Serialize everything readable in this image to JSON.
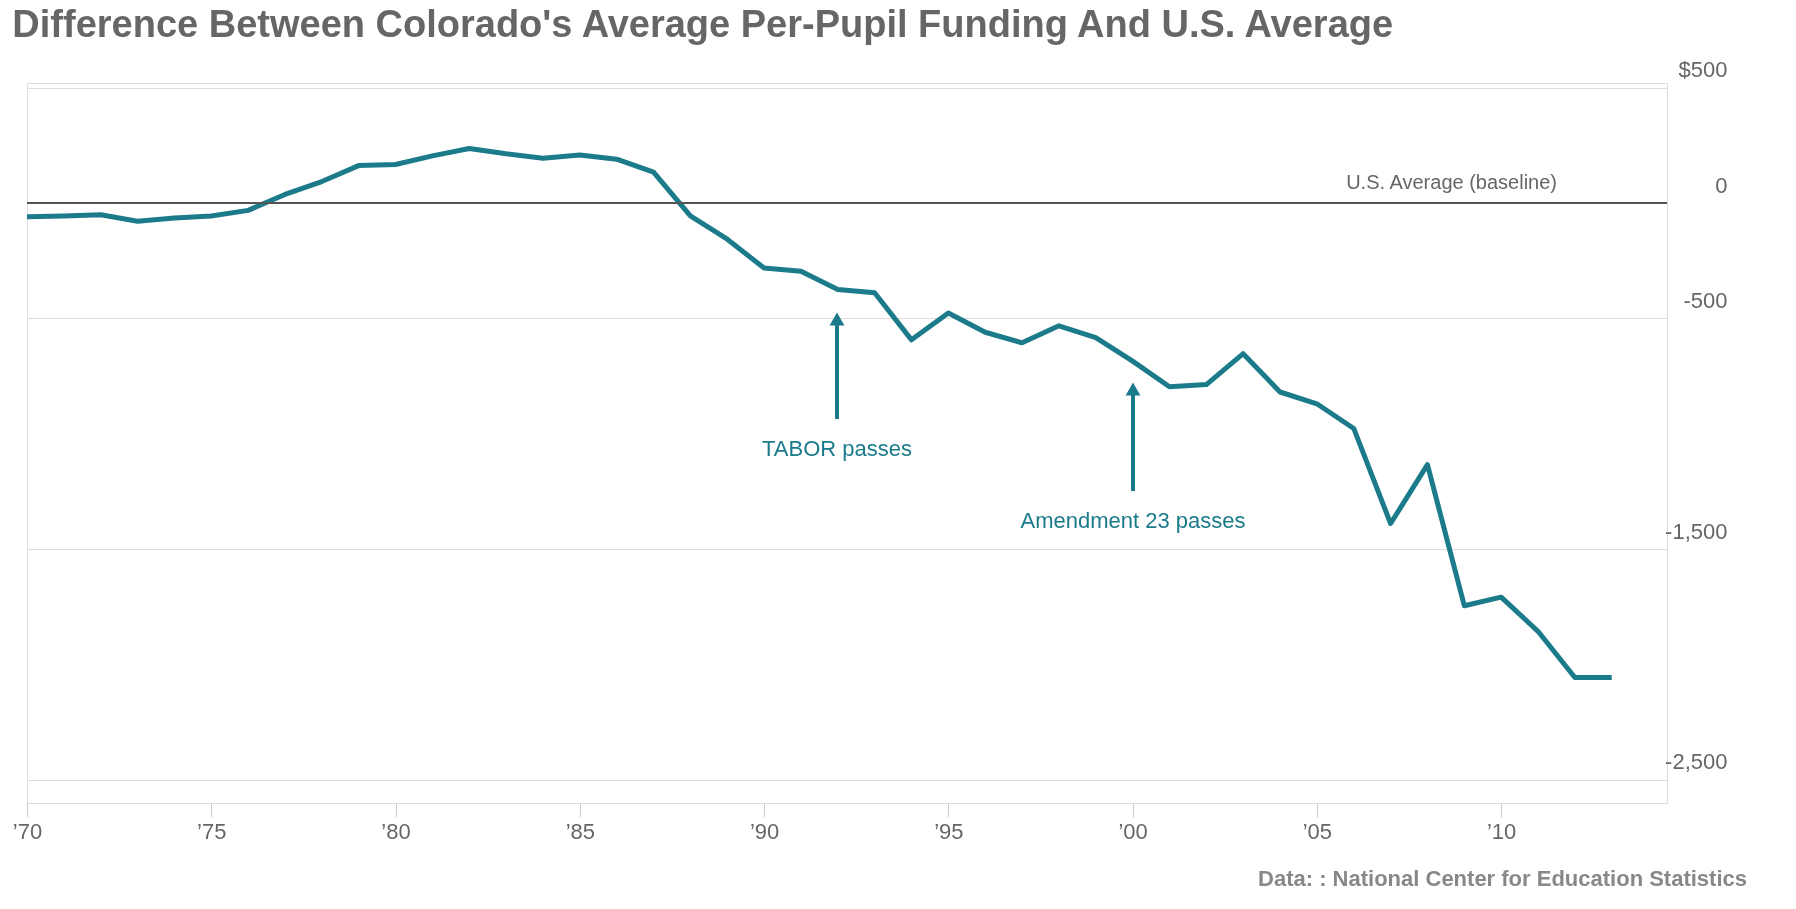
{
  "chart_data": {
    "type": "line",
    "title": "Difference Between Colorado's Average Per-Pupil Funding And U.S. Average",
    "x": [
      1970,
      1971,
      1972,
      1973,
      1974,
      1975,
      1976,
      1977,
      1978,
      1979,
      1980,
      1981,
      1982,
      1983,
      1984,
      1985,
      1986,
      1987,
      1988,
      1989,
      1990,
      1991,
      1992,
      1993,
      1994,
      1995,
      1996,
      1997,
      1998,
      1999,
      2000,
      2001,
      2002,
      2003,
      2004,
      2005,
      2006,
      2007,
      2008,
      2009,
      2010,
      2011,
      2012,
      2013
    ],
    "series": [
      {
        "color": "#1b7b8a",
        "values": [
          -60,
          -56,
          -51,
          -79,
          -65,
          -56,
          -32,
          37,
          93,
          162,
          167,
          204,
          236,
          213,
          194,
          208,
          190,
          134,
          -56,
          -157,
          -282,
          -296,
          -375,
          -389,
          -593,
          -477,
          -560,
          -606,
          -532,
          -583,
          -685,
          -796,
          -787,
          -653,
          -819,
          -870,
          -977,
          -1389,
          -1134,
          -1745,
          -1708,
          -1856,
          -2056,
          -2056
        ]
      }
    ],
    "xlim": [
      1970,
      2014.5
    ],
    "xticks": [
      {
        "value": 1970,
        "label": "’70"
      },
      {
        "value": 1975,
        "label": "’75"
      },
      {
        "value": 1980,
        "label": "’80"
      },
      {
        "value": 1985,
        "label": "’85"
      },
      {
        "value": 1990,
        "label": "’90"
      },
      {
        "value": 1995,
        "label": "’95"
      },
      {
        "value": 2000,
        "label": "’00"
      },
      {
        "value": 2005,
        "label": "’05"
      },
      {
        "value": 2010,
        "label": "’10"
      }
    ],
    "ylim": [
      -2600,
      520
    ],
    "yticks": [
      {
        "value": 500,
        "label": "$500"
      },
      0,
      -500,
      {
        "value": -1500,
        "label": "-1,500"
      },
      {
        "value": -2500,
        "label": "-2,500"
      }
    ],
    "grid": "y",
    "ref_lines": [
      {
        "axis": "y",
        "value": 0,
        "label": "U.S. Average (baseline)",
        "color": "#555555"
      }
    ],
    "annotations": [
      "TABOR passes",
      "Amendment 23 passes",
      "Data: : National Center for Education Statistics"
    ]
  }
}
